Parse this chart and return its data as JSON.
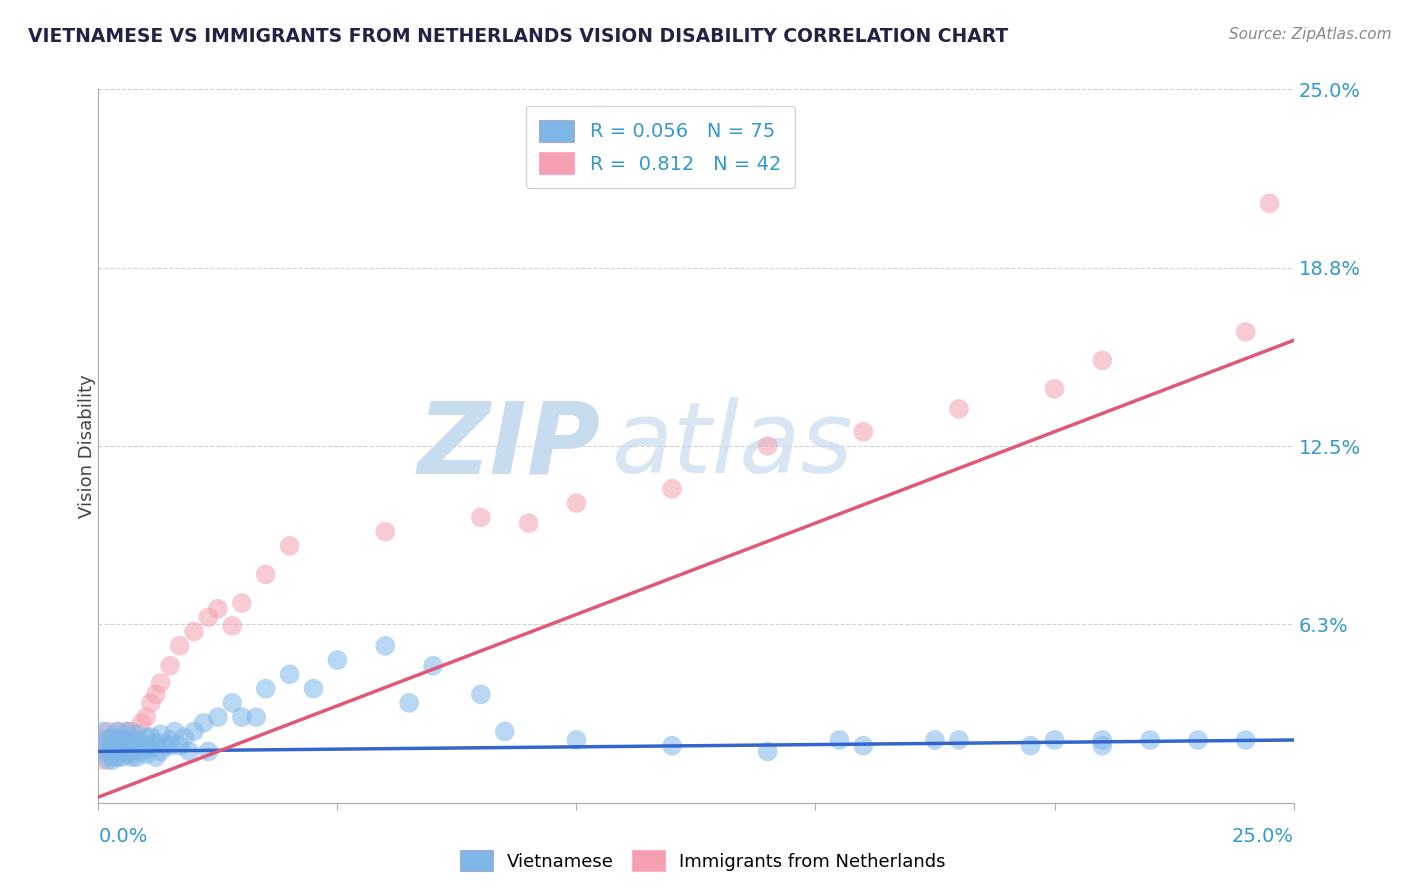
{
  "title": "VIETNAMESE VS IMMIGRANTS FROM NETHERLANDS VISION DISABILITY CORRELATION CHART",
  "source": "Source: ZipAtlas.com",
  "ylabel": "Vision Disability",
  "xlim": [
    0.0,
    0.25
  ],
  "ylim": [
    0.0,
    0.25
  ],
  "ytick_vals": [
    0.0625,
    0.125,
    0.1875,
    0.25
  ],
  "ytick_labels": [
    "6.3%",
    "12.5%",
    "18.8%",
    "25.0%"
  ],
  "watermark_zip": "ZIP",
  "watermark_atlas": "atlas",
  "blue_scatter_color": "#7EB6E8",
  "pink_scatter_color": "#F4A0B0",
  "blue_line_color": "#3366CC",
  "pink_line_color": "#E05878",
  "background_color": "#FFFFFF",
  "grid_color": "#CCCCCC",
  "title_color": "#222244",
  "axis_label_color": "#3399CC",
  "source_color": "#888888",
  "watermark_color": "#C8DCF0",
  "viet_x": [
    0.001,
    0.001,
    0.002,
    0.002,
    0.002,
    0.003,
    0.003,
    0.003,
    0.003,
    0.004,
    0.004,
    0.004,
    0.004,
    0.005,
    0.005,
    0.005,
    0.005,
    0.006,
    0.006,
    0.006,
    0.006,
    0.007,
    0.007,
    0.007,
    0.008,
    0.008,
    0.008,
    0.009,
    0.009,
    0.01,
    0.01,
    0.01,
    0.011,
    0.011,
    0.012,
    0.012,
    0.013,
    0.013,
    0.014,
    0.015,
    0.016,
    0.017,
    0.018,
    0.019,
    0.02,
    0.022,
    0.025,
    0.028,
    0.03,
    0.035,
    0.04,
    0.05,
    0.06,
    0.07,
    0.08,
    0.1,
    0.12,
    0.14,
    0.16,
    0.18,
    0.2,
    0.21,
    0.22,
    0.23,
    0.24,
    0.21,
    0.195,
    0.175,
    0.155,
    0.085,
    0.065,
    0.045,
    0.033,
    0.023,
    0.015
  ],
  "viet_y": [
    0.018,
    0.025,
    0.02,
    0.015,
    0.022,
    0.017,
    0.023,
    0.015,
    0.02,
    0.022,
    0.016,
    0.025,
    0.019,
    0.02,
    0.016,
    0.023,
    0.018,
    0.022,
    0.017,
    0.025,
    0.019,
    0.02,
    0.016,
    0.022,
    0.019,
    0.024,
    0.016,
    0.021,
    0.018,
    0.023,
    0.017,
    0.02,
    0.019,
    0.023,
    0.016,
    0.021,
    0.018,
    0.024,
    0.02,
    0.022,
    0.025,
    0.02,
    0.023,
    0.018,
    0.025,
    0.028,
    0.03,
    0.035,
    0.03,
    0.04,
    0.045,
    0.05,
    0.055,
    0.048,
    0.038,
    0.022,
    0.02,
    0.018,
    0.02,
    0.022,
    0.022,
    0.02,
    0.022,
    0.022,
    0.022,
    0.022,
    0.02,
    0.022,
    0.022,
    0.025,
    0.035,
    0.04,
    0.03,
    0.018,
    0.02
  ],
  "neth_x": [
    0.001,
    0.001,
    0.002,
    0.002,
    0.003,
    0.003,
    0.003,
    0.004,
    0.004,
    0.005,
    0.005,
    0.006,
    0.006,
    0.007,
    0.007,
    0.008,
    0.009,
    0.01,
    0.011,
    0.012,
    0.013,
    0.015,
    0.017,
    0.02,
    0.023,
    0.025,
    0.028,
    0.03,
    0.035,
    0.04,
    0.06,
    0.08,
    0.09,
    0.1,
    0.12,
    0.14,
    0.16,
    0.18,
    0.2,
    0.21,
    0.24,
    0.245
  ],
  "neth_y": [
    0.015,
    0.022,
    0.018,
    0.025,
    0.016,
    0.022,
    0.018,
    0.025,
    0.02,
    0.022,
    0.018,
    0.025,
    0.02,
    0.025,
    0.018,
    0.022,
    0.028,
    0.03,
    0.035,
    0.038,
    0.042,
    0.048,
    0.055,
    0.06,
    0.065,
    0.068,
    0.062,
    0.07,
    0.08,
    0.09,
    0.095,
    0.1,
    0.098,
    0.105,
    0.11,
    0.125,
    0.13,
    0.138,
    0.145,
    0.155,
    0.165,
    0.21
  ],
  "blue_trend_x": [
    0.0,
    0.25
  ],
  "blue_trend_y": [
    0.018,
    0.022
  ],
  "pink_trend_x": [
    0.0,
    0.25
  ],
  "pink_trend_y": [
    0.002,
    0.162
  ]
}
